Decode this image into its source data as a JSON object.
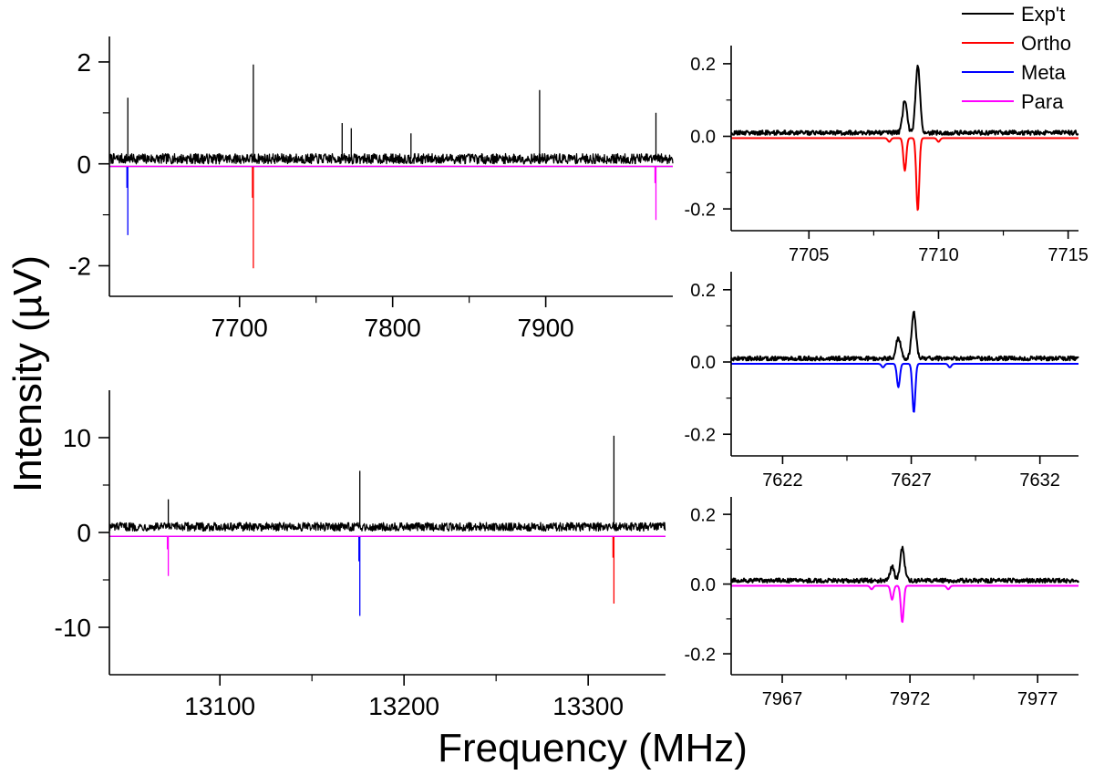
{
  "figure": {
    "ylabel": "Intensity (µV)",
    "xlabel": "Frequency (MHz)"
  },
  "legend": {
    "placement": "top-right",
    "entries": [
      {
        "label": "Exp't",
        "color": "#000000"
      },
      {
        "label": "Ortho",
        "color": "#ff0000"
      },
      {
        "label": "Meta",
        "color": "#0000ff"
      },
      {
        "label": "Para",
        "color": "#ff00ff"
      }
    ]
  },
  "chart_data": [
    {
      "id": "p1",
      "type": "line",
      "xlim": [
        7615,
        7983
      ],
      "ylim": [
        -2.6,
        2.5
      ],
      "xticks": [
        7700,
        7800,
        7900
      ],
      "yticks": [
        -2,
        0,
        2
      ],
      "xticklabels": [
        "7700",
        "7800",
        "7900"
      ],
      "yticklabels": [
        "-2",
        "0",
        "2"
      ],
      "grid": false,
      "noise": {
        "baseline": 0.1,
        "amplitude": 0.1
      },
      "series": [
        {
          "name": "Exp't",
          "color": "#000000",
          "peaks": [
            [
              7627,
              1.3
            ],
            [
              7709,
              1.95
            ],
            [
              7767,
              0.8
            ],
            [
              7773,
              0.7
            ],
            [
              7812,
              0.6
            ],
            [
              7896,
              1.45
            ],
            [
              7972,
              1.0
            ]
          ]
        },
        {
          "name": "Ortho",
          "color": "#ff0000",
          "offset": -0.05,
          "peaks": [
            [
              7709,
              -2.05
            ]
          ]
        },
        {
          "name": "Meta",
          "color": "#0000ff",
          "offset": -0.05,
          "peaks": [
            [
              7627,
              -1.4
            ]
          ]
        },
        {
          "name": "Para",
          "color": "#ff00ff",
          "offset": -0.05,
          "peaks": [
            [
              7972,
              -1.1
            ]
          ]
        }
      ]
    },
    {
      "id": "p2",
      "type": "line",
      "xlim": [
        13040,
        13342
      ],
      "ylim": [
        -15,
        15
      ],
      "xticks": [
        13100,
        13200,
        13300
      ],
      "yticks": [
        -10,
        0,
        10
      ],
      "xticklabels": [
        "13100",
        "13200",
        "13300"
      ],
      "yticklabels": [
        "-10",
        "0",
        "10"
      ],
      "grid": false,
      "noise": {
        "baseline": 0.6,
        "amplitude": 0.45
      },
      "series": [
        {
          "name": "Exp't",
          "color": "#000000",
          "peaks": [
            [
              13072,
              3.5
            ],
            [
              13176,
              6.5
            ],
            [
              13314,
              10.2
            ]
          ]
        },
        {
          "name": "Ortho",
          "color": "#ff0000",
          "offset": -0.4,
          "peaks": [
            [
              13314,
              -7.5
            ]
          ]
        },
        {
          "name": "Meta",
          "color": "#0000ff",
          "offset": -0.4,
          "peaks": [
            [
              13176,
              -8.8
            ]
          ]
        },
        {
          "name": "Para",
          "color": "#ff00ff",
          "offset": -0.4,
          "peaks": [
            [
              13072,
              -4.6
            ]
          ]
        }
      ]
    },
    {
      "id": "p3",
      "type": "line",
      "xlim": [
        7702,
        7715.4
      ],
      "ylim": [
        -0.26,
        0.25
      ],
      "xticks": [
        7705,
        7710,
        7715
      ],
      "yticks": [
        -0.2,
        0.0,
        0.2
      ],
      "xticklabels": [
        "7705",
        "7710",
        "7715"
      ],
      "yticklabels": [
        "-0.2",
        "0.0",
        "0.2"
      ],
      "grid": false,
      "series": [
        {
          "name": "Exp't",
          "color": "#000000",
          "baseline": 0.01,
          "noise": 0.006,
          "width": 0.12,
          "peaks": [
            [
              7708.7,
              0.09
            ],
            [
              7709.2,
              0.185
            ]
          ]
        },
        {
          "name": "Ortho",
          "color": "#ff0000",
          "baseline": -0.005,
          "noise": 0,
          "width": 0.08,
          "peaks": [
            [
              7708.7,
              -0.09
            ],
            [
              7709.2,
              -0.2
            ],
            [
              7708.1,
              -0.01
            ],
            [
              7710.0,
              -0.01
            ]
          ]
        }
      ]
    },
    {
      "id": "p4",
      "type": "line",
      "xlim": [
        7620,
        7633.5
      ],
      "ylim": [
        -0.26,
        0.25
      ],
      "xticks": [
        7622,
        7627,
        7632
      ],
      "yticks": [
        -0.2,
        0.0,
        0.2
      ],
      "xticklabels": [
        "7622",
        "7627",
        "7632"
      ],
      "yticklabels": [
        "-0.2",
        "0.0",
        "0.2"
      ],
      "grid": false,
      "series": [
        {
          "name": "Exp't",
          "color": "#000000",
          "baseline": 0.01,
          "noise": 0.006,
          "width": 0.12,
          "peaks": [
            [
              7626.5,
              0.06
            ],
            [
              7627.1,
              0.125
            ]
          ]
        },
        {
          "name": "Meta",
          "color": "#0000ff",
          "baseline": -0.005,
          "noise": 0,
          "width": 0.08,
          "peaks": [
            [
              7626.5,
              -0.065
            ],
            [
              7627.1,
              -0.135
            ],
            [
              7625.9,
              -0.01
            ],
            [
              7628.5,
              -0.01
            ]
          ]
        }
      ]
    },
    {
      "id": "p5",
      "type": "line",
      "xlim": [
        7965,
        7978.6
      ],
      "ylim": [
        -0.26,
        0.25
      ],
      "xticks": [
        7967,
        7972,
        7977
      ],
      "yticks": [
        -0.2,
        0.0,
        0.2
      ],
      "xticklabels": [
        "7967",
        "7972",
        "7977"
      ],
      "yticklabels": [
        "-0.2",
        "0.0",
        "0.2"
      ],
      "grid": false,
      "series": [
        {
          "name": "Exp't",
          "color": "#000000",
          "baseline": 0.01,
          "noise": 0.006,
          "width": 0.12,
          "peaks": [
            [
              7971.3,
              0.04
            ],
            [
              7971.7,
              0.095
            ]
          ]
        },
        {
          "name": "Para",
          "color": "#ff00ff",
          "baseline": -0.005,
          "noise": 0,
          "width": 0.08,
          "peaks": [
            [
              7971.3,
              -0.04
            ],
            [
              7971.7,
              -0.105
            ],
            [
              7970.5,
              -0.01
            ],
            [
              7973.5,
              -0.01
            ]
          ]
        }
      ]
    }
  ]
}
